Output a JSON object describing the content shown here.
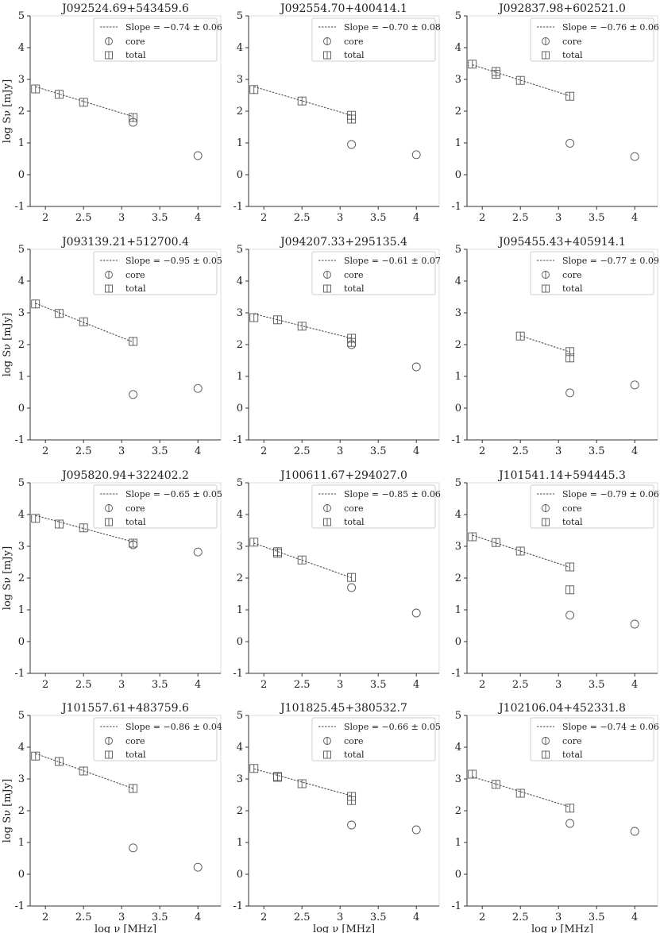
{
  "legend": {
    "core": "core",
    "total": "total",
    "slope_prefix": "Slope = "
  },
  "ylabel": "log Sν [mJy]",
  "xlabel": "log ν [MHz]",
  "chart_data": [
    {
      "type": "scatter",
      "title": "J092524.69+543459.6",
      "slope": "−0.74 ± 0.06",
      "xlim": [
        1.8,
        4.3
      ],
      "ylim": [
        -1,
        5
      ],
      "xticks": [
        2.0,
        2.5,
        3.0,
        3.5,
        4.0
      ],
      "yticks": [
        -1,
        0,
        1,
        2,
        3,
        4,
        5
      ],
      "total": {
        "x": [
          1.87,
          2.18,
          2.5,
          3.15
        ],
        "y": [
          2.7,
          2.53,
          2.28,
          1.8
        ]
      },
      "core": {
        "x": [
          3.15,
          4.0
        ],
        "y": [
          1.65,
          0.6
        ]
      },
      "fit": {
        "x": [
          1.87,
          3.15
        ],
        "y": [
          2.77,
          1.83
        ]
      }
    },
    {
      "type": "scatter",
      "title": "J092554.70+400414.1",
      "slope": "−0.70 ± 0.08",
      "xlim": [
        1.8,
        4.3
      ],
      "ylim": [
        -1,
        5
      ],
      "xticks": [
        2.0,
        2.5,
        3.0,
        3.5,
        4.0
      ],
      "yticks": [
        -1,
        0,
        1,
        2,
        3,
        4,
        5
      ],
      "total": {
        "x": [
          1.87,
          2.5,
          3.15,
          3.15
        ],
        "y": [
          2.68,
          2.32,
          1.87,
          1.75
        ]
      },
      "core": {
        "x": [
          3.15,
          4.0
        ],
        "y": [
          0.95,
          0.63
        ]
      },
      "fit": {
        "x": [
          1.87,
          3.15
        ],
        "y": [
          2.77,
          1.87
        ]
      }
    },
    {
      "type": "scatter",
      "title": "J092837.98+602521.0",
      "slope": "−0.76 ± 0.06",
      "xlim": [
        1.8,
        4.3
      ],
      "ylim": [
        -1,
        5
      ],
      "xticks": [
        2.0,
        2.5,
        3.0,
        3.5,
        4.0
      ],
      "yticks": [
        -1,
        0,
        1,
        2,
        3,
        4,
        5
      ],
      "total": {
        "x": [
          1.87,
          2.18,
          2.18,
          2.5,
          3.15
        ],
        "y": [
          3.48,
          3.25,
          3.16,
          2.97,
          2.47
        ]
      },
      "core": {
        "x": [
          3.15,
          4.0
        ],
        "y": [
          0.99,
          0.57
        ]
      },
      "fit": {
        "x": [
          1.87,
          3.15
        ],
        "y": [
          3.46,
          2.48
        ]
      }
    },
    {
      "type": "scatter",
      "title": "J093139.21+512700.4",
      "slope": "−0.95 ± 0.05",
      "xlim": [
        1.8,
        4.3
      ],
      "ylim": [
        -1,
        5
      ],
      "xticks": [
        2.0,
        2.5,
        3.0,
        3.5,
        4.0
      ],
      "yticks": [
        -1,
        0,
        1,
        2,
        3,
        4,
        5
      ],
      "total": {
        "x": [
          1.87,
          2.18,
          2.5,
          3.15
        ],
        "y": [
          3.28,
          2.98,
          2.72,
          2.1
        ]
      },
      "core": {
        "x": [
          3.15,
          4.0
        ],
        "y": [
          0.43,
          0.62
        ]
      },
      "fit": {
        "x": [
          1.87,
          3.15
        ],
        "y": [
          3.3,
          2.08
        ]
      }
    },
    {
      "type": "scatter",
      "title": "J094207.33+295135.4",
      "slope": "−0.61 ± 0.07",
      "xlim": [
        1.8,
        4.3
      ],
      "ylim": [
        -1,
        5
      ],
      "xticks": [
        2.0,
        2.5,
        3.0,
        3.5,
        4.0
      ],
      "yticks": [
        -1,
        0,
        1,
        2,
        3,
        4,
        5
      ],
      "total": {
        "x": [
          1.87,
          2.18,
          2.5,
          3.15,
          3.15
        ],
        "y": [
          2.85,
          2.78,
          2.58,
          2.2,
          2.07
        ]
      },
      "core": {
        "x": [
          3.15,
          4.0
        ],
        "y": [
          2.0,
          1.3
        ]
      },
      "fit": {
        "x": [
          1.87,
          3.15
        ],
        "y": [
          2.97,
          2.2
        ]
      }
    },
    {
      "type": "scatter",
      "title": "J095455.43+405914.1",
      "slope": "−0.77 ± 0.09",
      "xlim": [
        1.8,
        4.3
      ],
      "ylim": [
        -1,
        5
      ],
      "xticks": [
        2.0,
        2.5,
        3.0,
        3.5,
        4.0
      ],
      "yticks": [
        -1,
        0,
        1,
        2,
        3,
        4,
        5
      ],
      "total": {
        "x": [
          2.5,
          3.15,
          3.15
        ],
        "y": [
          2.27,
          1.78,
          1.58
        ]
      },
      "core": {
        "x": [
          3.15,
          4.0
        ],
        "y": [
          0.48,
          0.73
        ]
      },
      "fit": {
        "x": [
          2.5,
          3.15
        ],
        "y": [
          2.28,
          1.77
        ]
      }
    },
    {
      "type": "scatter",
      "title": "J095820.94+322402.2",
      "slope": "−0.65 ± 0.05",
      "xlim": [
        1.8,
        4.3
      ],
      "ylim": [
        -1,
        5
      ],
      "xticks": [
        2.0,
        2.5,
        3.0,
        3.5,
        4.0
      ],
      "yticks": [
        -1,
        0,
        1,
        2,
        3,
        4,
        5
      ],
      "total": {
        "x": [
          1.87,
          2.18,
          2.5,
          3.15
        ],
        "y": [
          3.88,
          3.7,
          3.58,
          3.1
        ]
      },
      "core": {
        "x": [
          3.15,
          4.0
        ],
        "y": [
          3.05,
          2.82
        ]
      },
      "fit": {
        "x": [
          1.87,
          3.15
        ],
        "y": [
          3.97,
          3.14
        ]
      }
    },
    {
      "type": "scatter",
      "title": "J100611.67+294027.0",
      "slope": "−0.85 ± 0.06",
      "xlim": [
        1.8,
        4.3
      ],
      "ylim": [
        -1,
        5
      ],
      "xticks": [
        2.0,
        2.5,
        3.0,
        3.5,
        4.0
      ],
      "yticks": [
        -1,
        0,
        1,
        2,
        3,
        4,
        5
      ],
      "total": {
        "x": [
          1.87,
          2.18,
          2.18,
          2.5,
          3.15
        ],
        "y": [
          3.13,
          2.83,
          2.78,
          2.57,
          2.02
        ]
      },
      "core": {
        "x": [
          3.15,
          4.0
        ],
        "y": [
          1.7,
          0.9
        ]
      },
      "fit": {
        "x": [
          1.87,
          3.15
        ],
        "y": [
          3.1,
          2.01
        ]
      }
    },
    {
      "type": "scatter",
      "title": "J101541.14+594445.3",
      "slope": "−0.79 ± 0.06",
      "xlim": [
        1.8,
        4.3
      ],
      "ylim": [
        -1,
        5
      ],
      "xticks": [
        2.0,
        2.5,
        3.0,
        3.5,
        4.0
      ],
      "yticks": [
        -1,
        0,
        1,
        2,
        3,
        4,
        5
      ],
      "total": {
        "x": [
          1.87,
          2.18,
          2.5,
          3.15,
          3.15
        ],
        "y": [
          3.3,
          3.12,
          2.85,
          2.35,
          1.63
        ]
      },
      "core": {
        "x": [
          3.15,
          4.0
        ],
        "y": [
          0.83,
          0.55
        ]
      },
      "fit": {
        "x": [
          1.87,
          3.15
        ],
        "y": [
          3.35,
          2.34
        ]
      }
    },
    {
      "type": "scatter",
      "title": "J101557.61+483759.6",
      "slope": "−0.86 ± 0.04",
      "xlim": [
        1.8,
        4.3
      ],
      "ylim": [
        -1,
        5
      ],
      "xticks": [
        2.0,
        2.5,
        3.0,
        3.5,
        4.0
      ],
      "yticks": [
        -1,
        0,
        1,
        2,
        3,
        4,
        5
      ],
      "total": {
        "x": [
          1.87,
          2.18,
          2.5,
          3.15
        ],
        "y": [
          3.72,
          3.55,
          3.25,
          2.7
        ]
      },
      "core": {
        "x": [
          3.15,
          4.0
        ],
        "y": [
          0.83,
          0.22
        ]
      },
      "fit": {
        "x": [
          1.87,
          3.15
        ],
        "y": [
          3.8,
          2.7
        ]
      }
    },
    {
      "type": "scatter",
      "title": "J101825.45+380532.7",
      "slope": "−0.66 ± 0.05",
      "xlim": [
        1.8,
        4.3
      ],
      "ylim": [
        -1,
        5
      ],
      "xticks": [
        2.0,
        2.5,
        3.0,
        3.5,
        4.0
      ],
      "yticks": [
        -1,
        0,
        1,
        2,
        3,
        4,
        5
      ],
      "total": {
        "x": [
          1.87,
          2.18,
          2.18,
          2.5,
          3.15,
          3.15
        ],
        "y": [
          3.33,
          3.08,
          3.05,
          2.85,
          2.45,
          2.32
        ]
      },
      "core": {
        "x": [
          3.15,
          4.0
        ],
        "y": [
          1.55,
          1.4
        ]
      },
      "fit": {
        "x": [
          1.87,
          3.15
        ],
        "y": [
          3.32,
          2.47
        ]
      }
    },
    {
      "type": "scatter",
      "title": "J102106.04+452331.8",
      "slope": "−0.74 ± 0.06",
      "xlim": [
        1.8,
        4.3
      ],
      "ylim": [
        -1,
        5
      ],
      "xticks": [
        2.0,
        2.5,
        3.0,
        3.5,
        4.0
      ],
      "yticks": [
        -1,
        0,
        1,
        2,
        3,
        4,
        5
      ],
      "total": {
        "x": [
          1.87,
          2.18,
          2.5,
          3.15
        ],
        "y": [
          3.15,
          2.83,
          2.55,
          2.08
        ]
      },
      "core": {
        "x": [
          3.15,
          4.0
        ],
        "y": [
          1.6,
          1.35
        ]
      },
      "fit": {
        "x": [
          1.87,
          3.15
        ],
        "y": [
          3.07,
          2.12
        ]
      }
    }
  ]
}
